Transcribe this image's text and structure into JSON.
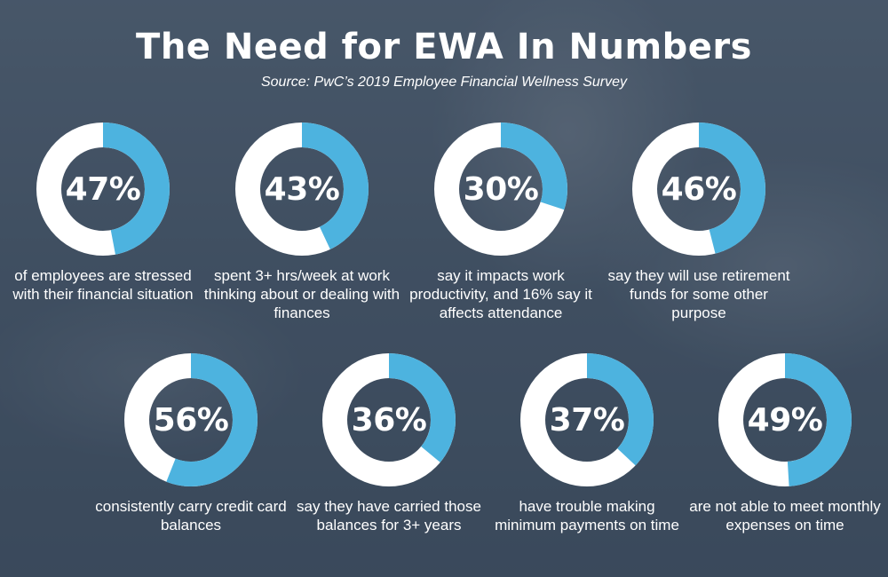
{
  "title": "The Need for EWA In Numbers",
  "subtitle": "Source: PwC’s 2019 Employee Financial Wellness Survey",
  "colors": {
    "accent": "#4db3df",
    "ring_base": "#ffffff",
    "text": "#ffffff"
  },
  "chart_data": {
    "type": "donut",
    "title": "The Need for EWA In Numbers",
    "items": [
      {
        "value": 47,
        "label": "47%",
        "description": "of employees are stressed with their financial situation"
      },
      {
        "value": 43,
        "label": "43%",
        "description": "spent 3+ hrs/week at work thinking about or dealing with finances"
      },
      {
        "value": 30,
        "label": "30%",
        "description": "say it impacts work productivity, and 16% say it affects attendance"
      },
      {
        "value": 46,
        "label": "46%",
        "description": "say they will use retirement funds for some other purpose"
      },
      {
        "value": 56,
        "label": "56%",
        "description": "consistently carry credit card balances"
      },
      {
        "value": 36,
        "label": "36%",
        "description": "say they have carried those balances for 3+ years"
      },
      {
        "value": 37,
        "label": "37%",
        "description": "have trouble making minimum payments on time"
      },
      {
        "value": 49,
        "label": "49%",
        "description": "are not able to meet monthly expenses on time"
      }
    ]
  }
}
